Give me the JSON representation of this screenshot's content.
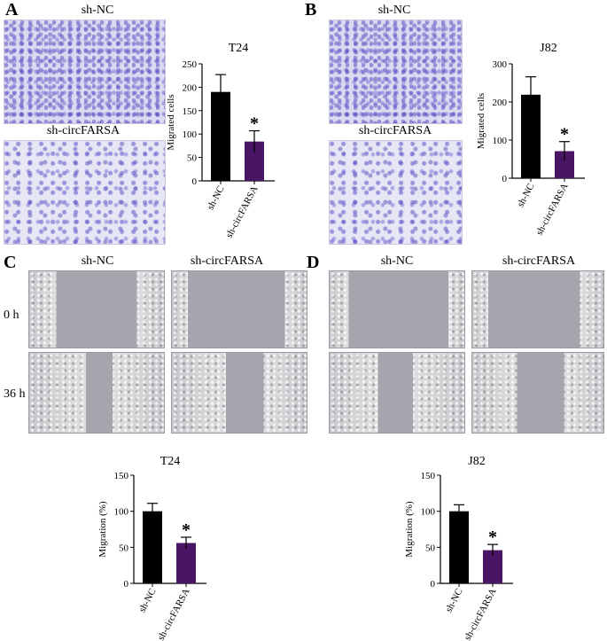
{
  "panels": {
    "A": {
      "letter": "A",
      "top_label": "sh-NC",
      "bottom_label": "sh-circFARSA"
    },
    "B": {
      "letter": "B",
      "top_label": "sh-NC",
      "bottom_label": "sh-circFARSA"
    },
    "C": {
      "letter": "C",
      "col1": "sh-NC",
      "col2": "sh-circFARSA",
      "row1": "0 h",
      "row2": "36 h"
    },
    "D": {
      "letter": "D",
      "col1": "sh-NC",
      "col2": "sh-circFARSA"
    }
  },
  "colors": {
    "sh_nc": "#000000",
    "sh_circfarsa": "#4b1566"
  },
  "chart_data": [
    {
      "id": "A",
      "type": "bar",
      "title": "T24",
      "ylabel": "Migrated cells",
      "categories": [
        "sh-NC",
        "sh-circFARSA"
      ],
      "values": [
        190,
        84
      ],
      "errors": [
        37,
        23
      ],
      "ylim": [
        0,
        250
      ],
      "yticks": [
        0,
        50,
        100,
        150,
        200,
        250
      ],
      "significance": [
        "",
        "*"
      ]
    },
    {
      "id": "B",
      "type": "bar",
      "title": "J82",
      "ylabel": "Migrated cells",
      "categories": [
        "sh-NC",
        "sh-circFARSA"
      ],
      "values": [
        219,
        71
      ],
      "errors": [
        47,
        25
      ],
      "ylim": [
        0,
        300
      ],
      "yticks": [
        0,
        100,
        200,
        300
      ],
      "significance": [
        "",
        "*"
      ]
    },
    {
      "id": "C",
      "type": "bar",
      "title": "T24",
      "ylabel": "Migration (%)",
      "categories": [
        "sh-NC",
        "sh-circFARSA"
      ],
      "values": [
        100,
        56
      ],
      "errors": [
        11,
        8
      ],
      "ylim": [
        0,
        150
      ],
      "yticks": [
        0,
        50,
        100,
        150
      ],
      "significance": [
        "",
        "*"
      ]
    },
    {
      "id": "D",
      "type": "bar",
      "title": "J82",
      "ylabel": "Migration (%)",
      "categories": [
        "sh-NC",
        "sh-circFARSA"
      ],
      "values": [
        100,
        46
      ],
      "errors": [
        9,
        8
      ],
      "ylim": [
        0,
        150
      ],
      "yticks": [
        0,
        50,
        100,
        150
      ],
      "significance": [
        "",
        "*"
      ]
    }
  ]
}
